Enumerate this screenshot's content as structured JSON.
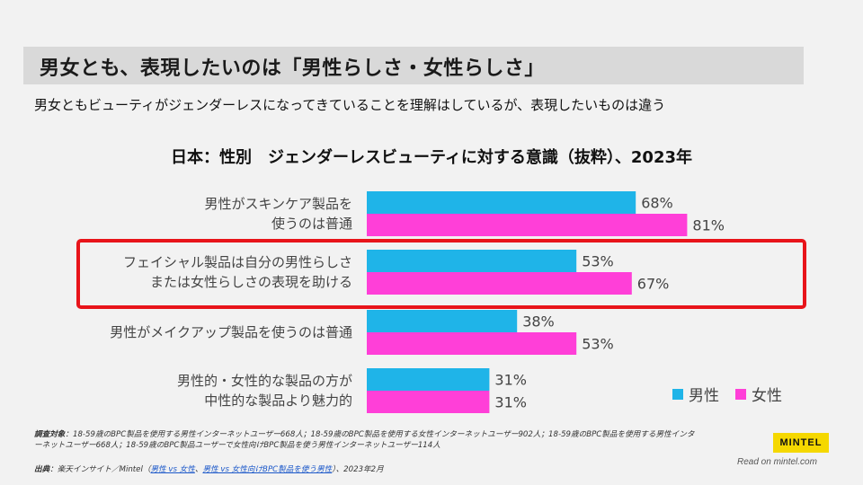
{
  "page": {
    "title": "男女とも、表現したいのは「男性らしさ・女性らしさ」",
    "subtitle": "男女ともビューティがジェンダーレスになってきていることを理解はしているが、表現したいものは違う"
  },
  "chart_data": {
    "type": "bar",
    "orientation": "horizontal",
    "title": "日本：性別　ジェンダーレスビューティに対する意識（抜粋）、2023年",
    "categories": [
      [
        "男性がスキンケア製品を",
        "使うのは普通"
      ],
      [
        "フェイシャル製品は自分の男性らしさ",
        "または女性らしさの表現を助ける"
      ],
      [
        "男性がメイクアップ製品を使うのは普通"
      ],
      [
        "男性的・女性的な製品の方が",
        "中性的な製品より魅力的"
      ]
    ],
    "series": [
      {
        "name": "男性",
        "values": [
          68,
          53,
          38,
          31
        ],
        "color": "#1fb4e8"
      },
      {
        "name": "女性",
        "values": [
          81,
          67,
          53,
          31
        ],
        "color": "#ff3fd8"
      }
    ],
    "value_suffix": "%",
    "xlim": [
      0,
      100
    ],
    "highlighted_category": 1,
    "highlight_color": "#e8141a"
  },
  "footer": {
    "note_label": "調査対象",
    "note_text": "：18-59歳のBPC製品を使用する男性インターネットユーザー668人；18-59歳のBPC製品を使用する女性インターネットユーザー902人；18-59歳のBPC製品を使用する男性インターネットユーザー668人；18-59歳のBPC製品ユーザーで女性向けBPC製品を使う男性インターネットユーザー114人",
    "source_label": "出典",
    "source_prefix": "：楽天インサイト／Mintel（",
    "source_link1": "男性 vs 女性",
    "source_sep": "、",
    "source_link2": "男性 vs 女性向けBPC製品を使う男性",
    "source_suffix": "）、2023年2月",
    "logo_text": "MINTEL",
    "read_on": "Read on mintel.com"
  }
}
